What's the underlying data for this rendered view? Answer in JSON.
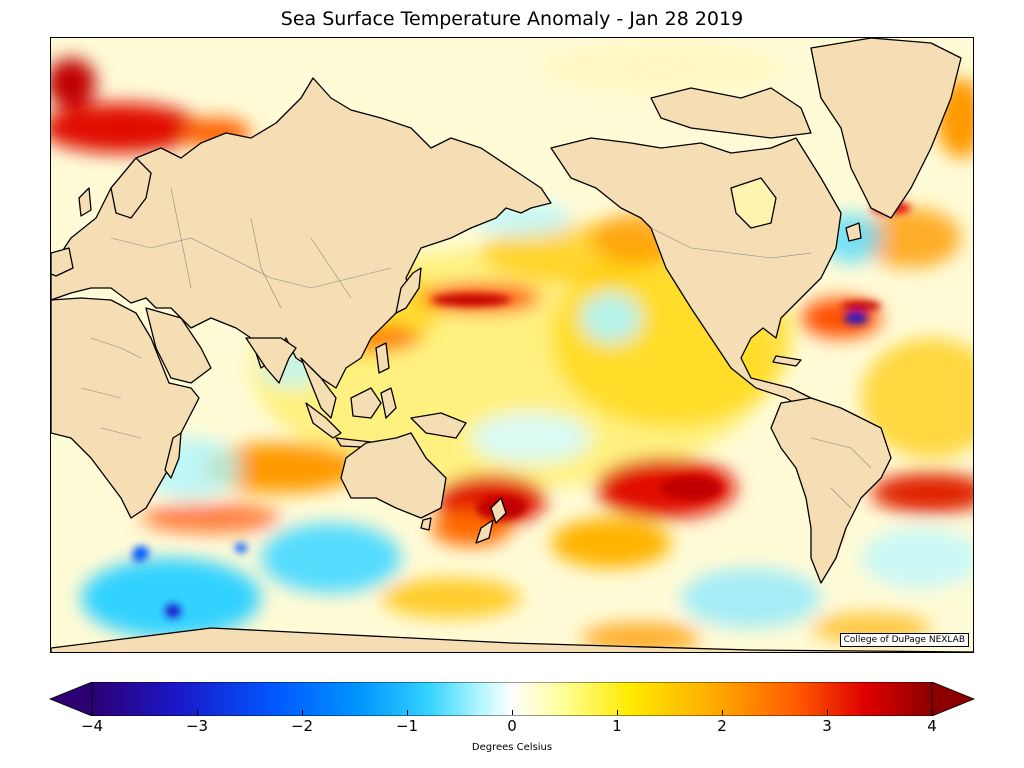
{
  "title": "Sea Surface Temperature Anomaly - Jan 28 2019",
  "credit": "College of DuPage NEXLAB",
  "colorbar": {
    "label": "Degrees Celsius",
    "range": [
      -4,
      4
    ],
    "ticks": [
      "−4",
      "−3",
      "−2",
      "−1",
      "0",
      "1",
      "2",
      "3",
      "4"
    ],
    "extend": "both",
    "colors": [
      "#2d0074",
      "#1a17c8",
      "#0059ff",
      "#0096ff",
      "#33d2ff",
      "#aef6ff",
      "#ffffff",
      "#ffff9a",
      "#ffea00",
      "#ffab00",
      "#ff5a00",
      "#e00000",
      "#8c0000"
    ]
  },
  "map": {
    "projection": "Pacific-centered equirectangular",
    "land_color": "#f5deb3",
    "coastline_color": "#000000",
    "border_color": "#888888"
  }
}
